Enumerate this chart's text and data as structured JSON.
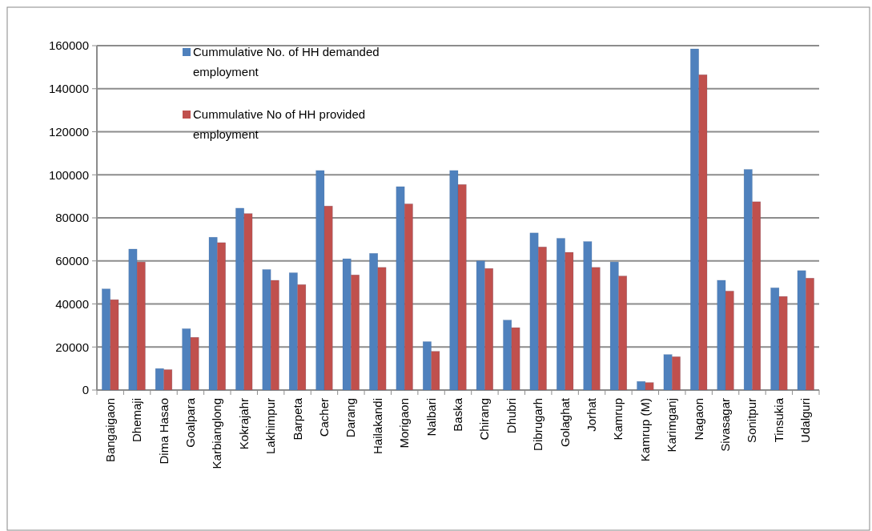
{
  "chart_data": {
    "type": "bar",
    "categories": [
      "Bangaigaon",
      "Dhemaji",
      "Dima Hasao",
      "Goalpara",
      "Karbianglong",
      "Kokrajahr",
      "Lakhimpur",
      "Barpeta",
      "Cacher",
      "Darang",
      "Hailakandi",
      "Morigaon",
      "Nalbari",
      "Baska",
      "Chirang",
      "Dhubri",
      "Dibrugarh",
      "Golaghat",
      "Jorhat",
      "Kamrup",
      "Kamrup (M)",
      "Karimganj",
      "Nagaon",
      "Sivasagar",
      "Sonitpur",
      "Tinsukia",
      "Udalguri"
    ],
    "series": [
      {
        "name": "Cummulative No. of HH demanded employment",
        "color": "#4f81bd",
        "values": [
          47000,
          65500,
          10000,
          28500,
          71000,
          84500,
          56000,
          54500,
          102000,
          61000,
          63500,
          94500,
          22500,
          102000,
          60000,
          32500,
          73000,
          70500,
          69000,
          59500,
          4000,
          16500,
          158500,
          51000,
          102500,
          47500,
          55500
        ]
      },
      {
        "name": "Cummulative No of HH provided employment",
        "color": "#c0504d",
        "values": [
          42000,
          59500,
          9500,
          24500,
          68500,
          82000,
          51000,
          49000,
          85500,
          53500,
          57000,
          86500,
          18000,
          95500,
          56500,
          29000,
          66500,
          64000,
          57000,
          53000,
          3500,
          15500,
          146500,
          46000,
          87500,
          43500,
          52000
        ]
      }
    ],
    "ylim": [
      0,
      160000
    ],
    "yticks": [
      0,
      20000,
      40000,
      60000,
      80000,
      100000,
      120000,
      140000,
      160000
    ],
    "grid": "y",
    "legend": "top left"
  }
}
